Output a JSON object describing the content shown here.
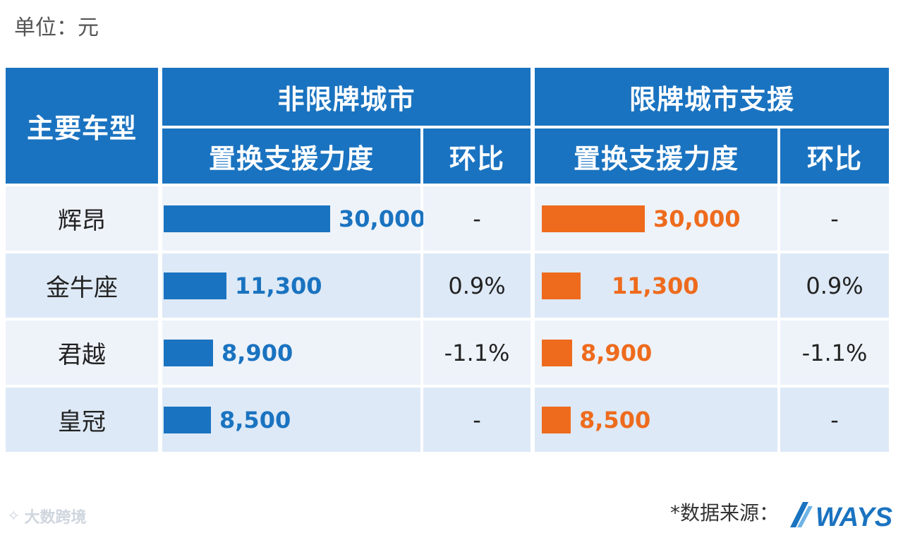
{
  "unit_label": "单位：元",
  "header": {
    "model_col": "主要车型",
    "group_non_restricted": "非限牌城市",
    "group_restricted": "限牌城市支援",
    "sub_support": "置换支援力度",
    "sub_mom": "环比"
  },
  "colors": {
    "header_bg": "#1a73c0",
    "non_restricted_bar": "#1a73c0",
    "restricted_bar": "#ee6b1d"
  },
  "chart_data": {
    "type": "table",
    "categories": [
      "辉昂",
      "金牛座",
      "君越",
      "皇冠"
    ],
    "series": [
      {
        "name": "非限牌城市 置换支援力度",
        "values": [
          30000,
          11300,
          8900,
          8500
        ]
      },
      {
        "name": "限牌城市支援 置换支援力度",
        "values": [
          30000,
          11300,
          8900,
          8500
        ]
      }
    ],
    "value_labels": [
      "30,000",
      "11,300",
      "8,900",
      "8,500"
    ],
    "mom_non_restricted": [
      "-",
      "0.9%",
      "-1.1%",
      "-"
    ],
    "mom_restricted": [
      "-",
      "0.9%",
      "-1.1%",
      "-"
    ]
  },
  "footer": {
    "source_label": "*数据来源：",
    "watermark": "大数跨境",
    "logo_text": "WAYS"
  }
}
